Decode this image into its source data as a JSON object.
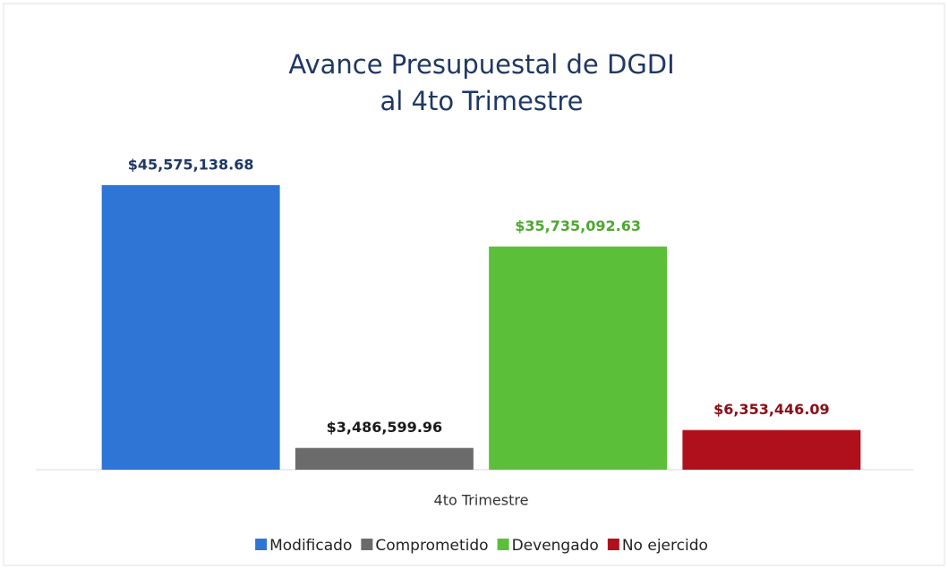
{
  "chart_data": {
    "type": "bar",
    "title": [
      "Avance Presupuestal de DGDI",
      "al 4to Trimestre"
    ],
    "categories": [
      "4to Trimestre"
    ],
    "series": [
      {
        "name": "Modificado",
        "color": "#2e75d6",
        "label_color": "#1f3864",
        "values": [
          45575138.68
        ],
        "value_labels": [
          "$45,575,138.68"
        ]
      },
      {
        "name": "Comprometido",
        "color": "#6b6b6b",
        "label_color": "#1a1a1a",
        "values": [
          3486599.96
        ],
        "value_labels": [
          "$3,486,599.96"
        ]
      },
      {
        "name": "Devengado",
        "color": "#5cbf3a",
        "label_color": "#4ea82f",
        "values": [
          35735092.63
        ],
        "value_labels": [
          "$35,735,092.63"
        ]
      },
      {
        "name": "No ejercido",
        "color": "#b0101c",
        "label_color": "#8b0e16",
        "values": [
          6353446.09
        ],
        "value_labels": [
          "$6,353,446.09"
        ]
      }
    ],
    "ylim": [
      0,
      50000000
    ],
    "legend": "bottom"
  }
}
